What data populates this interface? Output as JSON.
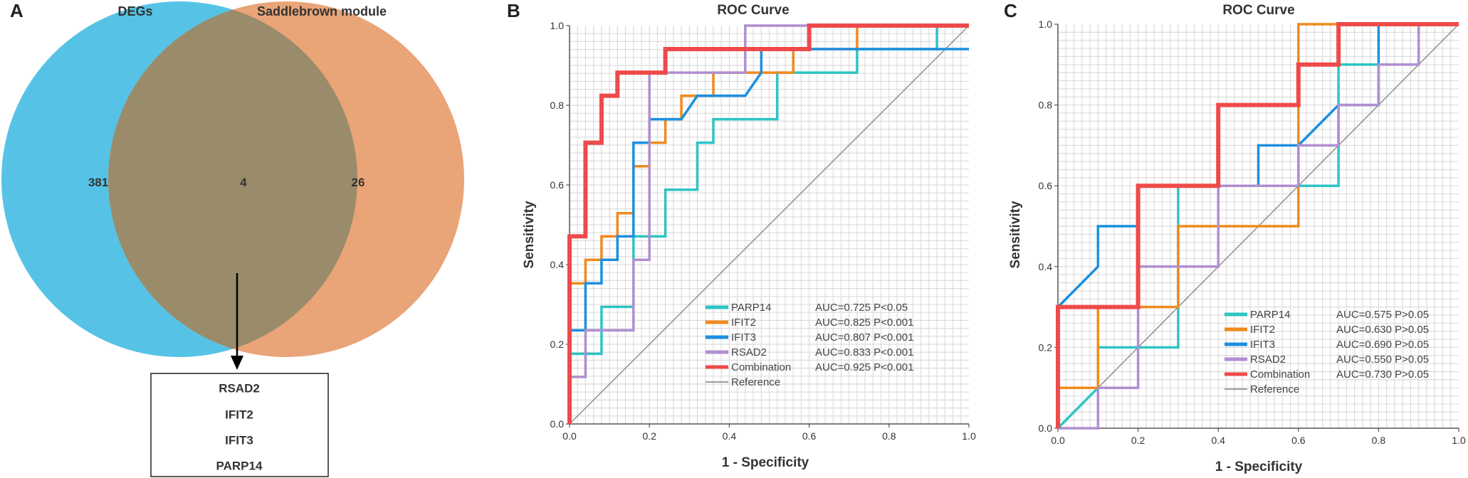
{
  "panels": {
    "A": {
      "letter": "A",
      "venn": {
        "left_set": "DEGs",
        "right_set": "Saddlebrown module",
        "left_only": "381",
        "overlap": "4",
        "right_only": "26",
        "left_color": "#56c3e6",
        "right_color": "#e9a478",
        "overlap_color": "#9a8c6a",
        "overlap_genes": [
          "RSAD2",
          "IFIT2",
          "IFIT3",
          "PARP14"
        ]
      }
    },
    "B": {
      "letter": "B"
    },
    "C": {
      "letter": "C"
    }
  },
  "chart_data": [
    {
      "panel": "B",
      "type": "line",
      "title": "ROC Curve",
      "xlabel": "1 - Specificity",
      "ylabel": "Sensitivity",
      "xlim": [
        0,
        1
      ],
      "ylim": [
        0,
        1
      ],
      "xticks": [
        "0.0",
        "0.2",
        "0.4",
        "0.6",
        "0.8",
        "1.0"
      ],
      "yticks": [
        "0.0",
        "0.2",
        "0.4",
        "0.6",
        "0.8",
        "1.0"
      ],
      "grid": true,
      "legend_position": "bottom-right",
      "series": [
        {
          "name": "PARP14",
          "color": "#2ec4c4",
          "stat": "AUC=0.725 P<0.05",
          "x": [
            0,
            0,
            0.08,
            0.08,
            0.16,
            0.16,
            0.24,
            0.24,
            0.32,
            0.32,
            0.36,
            0.36,
            0.52,
            0.52,
            0.72,
            0.72,
            0.92,
            0.92,
            1
          ],
          "y": [
            0,
            0.176,
            0.176,
            0.294,
            0.294,
            0.471,
            0.471,
            0.588,
            0.588,
            0.706,
            0.706,
            0.765,
            0.765,
            0.882,
            0.882,
            0.941,
            0.941,
            1,
            1
          ]
        },
        {
          "name": "IFIT2",
          "color": "#f08a1c",
          "stat": "AUC=0.825 P<0.001",
          "x": [
            0,
            0,
            0.04,
            0.04,
            0.08,
            0.08,
            0.12,
            0.12,
            0.16,
            0.16,
            0.2,
            0.2,
            0.24,
            0.24,
            0.28,
            0.28,
            0.36,
            0.36,
            0.56,
            0.56,
            0.72,
            0.72,
            1
          ],
          "y": [
            0,
            0.353,
            0.353,
            0.412,
            0.412,
            0.471,
            0.471,
            0.529,
            0.529,
            0.647,
            0.647,
            0.706,
            0.706,
            0.765,
            0.765,
            0.824,
            0.824,
            0.882,
            0.882,
            0.941,
            0.941,
            1,
            1
          ]
        },
        {
          "name": "IFIT3",
          "color": "#1c8fe0",
          "stat": "AUC=0.807 P<0.001",
          "x": [
            0,
            0,
            0.04,
            0.04,
            0.08,
            0.08,
            0.12,
            0.12,
            0.16,
            0.16,
            0.2,
            0.2,
            0.28,
            0.32,
            0.44,
            0.48,
            0.48,
            0.6,
            0.6,
            1
          ],
          "y": [
            0,
            0.235,
            0.235,
            0.353,
            0.353,
            0.412,
            0.412,
            0.471,
            0.471,
            0.706,
            0.706,
            0.765,
            0.765,
            0.824,
            0.824,
            0.882,
            0.941,
            0.941,
            0.941,
            0.941
          ]
        },
        {
          "name": "RSAD2",
          "color": "#b08fd0",
          "stat": "AUC=0.833 P<0.001",
          "x": [
            0,
            0,
            0.04,
            0.04,
            0.16,
            0.16,
            0.2,
            0.2,
            0.44,
            0.44,
            1
          ],
          "y": [
            0,
            0.118,
            0.118,
            0.235,
            0.235,
            0.412,
            0.412,
            0.882,
            0.882,
            1,
            1
          ]
        },
        {
          "name": "Combination",
          "color": "#ef4a4a",
          "stat": "AUC=0.925 P<0.001",
          "x": [
            0,
            0,
            0.04,
            0.04,
            0.08,
            0.08,
            0.12,
            0.12,
            0.24,
            0.24,
            0.6,
            0.6,
            1
          ],
          "y": [
            0,
            0.471,
            0.471,
            0.706,
            0.706,
            0.824,
            0.824,
            0.882,
            0.882,
            0.941,
            0.941,
            1,
            1
          ]
        },
        {
          "name": "Reference",
          "color": "#8f8f8f",
          "stat": "",
          "x": [
            0,
            1
          ],
          "y": [
            0,
            1
          ]
        }
      ]
    },
    {
      "panel": "C",
      "type": "line",
      "title": "ROC Curve",
      "xlabel": "1 - Specificity",
      "ylabel": "Sensitivity",
      "xlim": [
        0,
        1
      ],
      "ylim": [
        0,
        1
      ],
      "xticks": [
        "0.0",
        "0.2",
        "0.4",
        "0.6",
        "0.8",
        "1.0"
      ],
      "yticks": [
        "0.0",
        "0.2",
        "0.4",
        "0.6",
        "0.8",
        "1.0"
      ],
      "grid": true,
      "legend_position": "bottom-right",
      "series": [
        {
          "name": "PARP14",
          "color": "#2ec4c4",
          "stat": "AUC=0.575 P>0.05",
          "x": [
            0,
            0.1,
            0.1,
            0.3,
            0.3,
            0.4,
            0.4,
            0.5,
            0.5,
            0.6,
            0.7,
            0.7,
            0.8,
            0.8,
            0.9,
            0.9,
            1
          ],
          "y": [
            0,
            0.1,
            0.2,
            0.2,
            0.6,
            0.6,
            0.6,
            0.6,
            0.6,
            0.6,
            0.6,
            0.9,
            0.9,
            0.9,
            0.9,
            1,
            1
          ]
        },
        {
          "name": "IFIT2",
          "color": "#f08a1c",
          "stat": "AUC=0.630 P>0.05",
          "x": [
            0,
            0,
            0.1,
            0.1,
            0.3,
            0.3,
            0.6,
            0.6,
            0.7,
            0.7,
            1
          ],
          "y": [
            0,
            0.1,
            0.1,
            0.3,
            0.3,
            0.5,
            0.5,
            1,
            1,
            1,
            1
          ]
        },
        {
          "name": "IFIT3",
          "color": "#1c8fe0",
          "stat": "AUC=0.690 P>0.05",
          "x": [
            0,
            0,
            0.1,
            0.1,
            0.2,
            0.2,
            0.4,
            0.4,
            0.5,
            0.5,
            0.6,
            0.7,
            0.7,
            0.8,
            0.8,
            1
          ],
          "y": [
            0,
            0.3,
            0.4,
            0.5,
            0.5,
            0.6,
            0.6,
            0.6,
            0.6,
            0.7,
            0.7,
            0.8,
            0.8,
            0.8,
            1,
            1
          ]
        },
        {
          "name": "RSAD2",
          "color": "#b08fd0",
          "stat": "AUC=0.550 P>0.05",
          "x": [
            0,
            0.1,
            0.1,
            0.2,
            0.2,
            0.4,
            0.4,
            0.6,
            0.6,
            0.7,
            0.7,
            0.8,
            0.8,
            0.9,
            0.9,
            1
          ],
          "y": [
            0,
            0,
            0.1,
            0.1,
            0.4,
            0.4,
            0.6,
            0.6,
            0.7,
            0.7,
            0.8,
            0.8,
            0.9,
            0.9,
            1,
            1
          ]
        },
        {
          "name": "Combination",
          "color": "#ef4a4a",
          "stat": "AUC=0.730 P>0.05",
          "x": [
            0,
            0,
            0.2,
            0.2,
            0.4,
            0.4,
            0.6,
            0.6,
            0.7,
            0.7,
            1
          ],
          "y": [
            0,
            0.3,
            0.3,
            0.6,
            0.6,
            0.8,
            0.8,
            0.9,
            0.9,
            1,
            1
          ]
        },
        {
          "name": "Reference",
          "color": "#8f8f8f",
          "stat": "",
          "x": [
            0,
            1
          ],
          "y": [
            0,
            1
          ]
        }
      ]
    }
  ]
}
